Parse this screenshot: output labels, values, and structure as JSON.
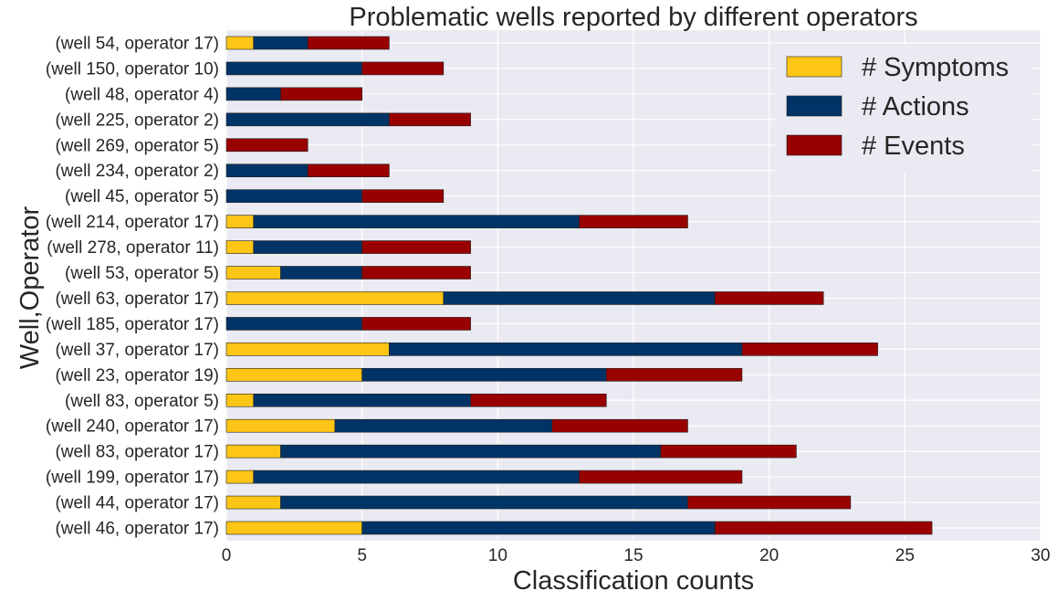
{
  "chart_data": {
    "type": "bar",
    "orientation": "horizontal",
    "stacked": true,
    "title": "Problematic wells reported by different operators",
    "xlabel": "Classification counts",
    "ylabel": "Well,Operator",
    "xlim": [
      0,
      30
    ],
    "xticks": [
      0,
      5,
      10,
      15,
      20,
      25,
      30
    ],
    "grid": true,
    "legend_position": "top-right",
    "categories": [
      "(well 54, operator 17)",
      "(well 150, operator 10)",
      "(well 48, operator 4)",
      "(well 225, operator 2)",
      "(well 269, operator 5)",
      "(well 234, operator 2)",
      "(well 45, operator 5)",
      "(well 214, operator 17)",
      "(well 278, operator 11)",
      "(well 53, operator 5)",
      "(well 63, operator 17)",
      "(well 185, operator 17)",
      "(well 37, operator 17)",
      "(well 23, operator 19)",
      "(well 83, operator 5)",
      "(well 240, operator 17)",
      "(well 83, operator 17)",
      "(well 199, operator 17)",
      "(well 44, operator 17)",
      "(well 46, operator 17)"
    ],
    "series": [
      {
        "name": "# Symptoms",
        "color": "#fdc515",
        "values": [
          1,
          0,
          0,
          0,
          0,
          0,
          0,
          1,
          1,
          2,
          8,
          0,
          6,
          5,
          1,
          4,
          2,
          1,
          2,
          5
        ]
      },
      {
        "name": "# Actions",
        "color": "#003366",
        "values": [
          2,
          5,
          2,
          6,
          0,
          3,
          5,
          12,
          4,
          3,
          10,
          5,
          13,
          9,
          8,
          8,
          14,
          12,
          15,
          13
        ]
      },
      {
        "name": "# Events",
        "color": "#990000",
        "values": [
          3,
          3,
          3,
          3,
          3,
          3,
          3,
          4,
          4,
          4,
          4,
          4,
          5,
          5,
          5,
          5,
          5,
          6,
          6,
          8
        ]
      }
    ]
  }
}
